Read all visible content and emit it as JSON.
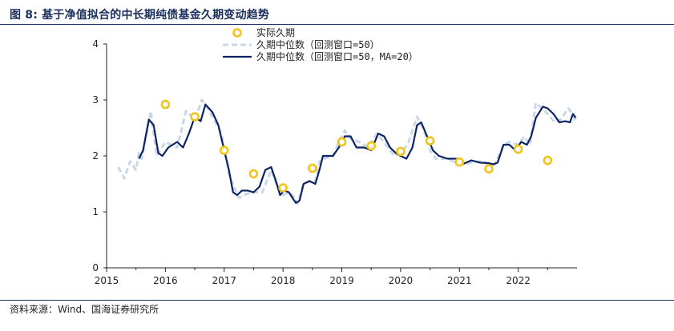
{
  "title": "图 8: 基于净值拟合的中长期纯债基金久期变动趋势",
  "source": "资料来源：Wind、国海证券研究所",
  "colors": {
    "actual": "#f2c318",
    "median": "#c9d6ea",
    "ma": "#0d2464",
    "axis": "#222222"
  },
  "chart_data": {
    "type": "line",
    "xlabel": "",
    "ylabel": "",
    "xlim": [
      2015,
      2023
    ],
    "ylim": [
      0,
      4
    ],
    "x_ticks": [
      "2015",
      "2016",
      "2017",
      "2018",
      "2019",
      "2020",
      "2021",
      "2022"
    ],
    "y_ticks": [
      "0",
      "1",
      "2",
      "3",
      "4"
    ],
    "grid": false,
    "legend_position": "top-center",
    "series": [
      {
        "name": "实际久期",
        "style": "scatter",
        "x": [
          2016.0,
          2016.5,
          2017.0,
          2017.5,
          2018.0,
          2018.5,
          2019.0,
          2019.5,
          2020.0,
          2020.5,
          2021.0,
          2021.5,
          2022.0,
          2022.5
        ],
        "y": [
          2.92,
          2.7,
          2.1,
          1.68,
          1.43,
          1.78,
          2.25,
          2.18,
          2.08,
          2.27,
          1.89,
          1.77,
          2.12,
          1.92
        ]
      },
      {
        "name": "久期中位数（回测窗口=50）",
        "style": "dashed",
        "x": [
          2015.2,
          2015.3,
          2015.4,
          2015.5,
          2015.55,
          2015.6,
          2015.75,
          2015.85,
          2016.0,
          2016.2,
          2016.35,
          2016.5,
          2016.62,
          2016.75,
          2016.95,
          2017.1,
          2017.25,
          2017.45,
          2017.65,
          2017.8,
          2017.92,
          2018.0,
          2018.1,
          2018.2,
          2018.25,
          2018.35,
          2018.45,
          2018.55,
          2018.62,
          2018.7,
          2018.85,
          2018.95,
          2019.05,
          2019.15,
          2019.3,
          2019.45,
          2019.6,
          2019.75,
          2019.9,
          2020.0,
          2020.12,
          2020.28,
          2020.4,
          2020.5,
          2020.6,
          2020.75,
          2020.9,
          2021.1,
          2021.25,
          2021.4,
          2021.5,
          2021.6,
          2021.75,
          2021.85,
          2022.0,
          2022.1,
          2022.2,
          2022.3,
          2022.4,
          2022.5,
          2022.62,
          2022.72,
          2022.85,
          2022.93,
          2022.98
        ],
        "y": [
          1.8,
          1.6,
          1.9,
          1.75,
          2.05,
          1.95,
          2.8,
          2.0,
          2.25,
          2.15,
          2.8,
          2.65,
          3.0,
          2.8,
          2.4,
          1.6,
          1.25,
          1.35,
          1.35,
          1.75,
          1.4,
          1.3,
          1.35,
          1.25,
          1.15,
          1.5,
          1.55,
          1.55,
          1.9,
          1.95,
          2.0,
          2.25,
          2.45,
          2.3,
          2.25,
          2.15,
          2.4,
          2.2,
          2.0,
          2.05,
          2.2,
          2.7,
          2.45,
          2.1,
          1.95,
          1.95,
          1.9,
          1.85,
          1.9,
          1.9,
          1.85,
          1.85,
          2.2,
          2.25,
          2.2,
          2.35,
          2.2,
          2.95,
          2.85,
          2.75,
          2.6,
          2.65,
          2.85,
          2.75,
          2.6
        ]
      },
      {
        "name": "久期中位数（回测窗口=50，MA=20）",
        "style": "solid",
        "x": [
          2015.55,
          2015.62,
          2015.72,
          2015.8,
          2015.88,
          2015.95,
          2016.05,
          2016.2,
          2016.3,
          2016.4,
          2016.5,
          2016.6,
          2016.68,
          2016.8,
          2016.9,
          2017.0,
          2017.08,
          2017.15,
          2017.22,
          2017.3,
          2017.4,
          2017.5,
          2017.6,
          2017.7,
          2017.8,
          2017.88,
          2017.95,
          2018.02,
          2018.1,
          2018.18,
          2018.22,
          2018.28,
          2018.35,
          2018.45,
          2018.55,
          2018.62,
          2018.68,
          2018.75,
          2018.85,
          2018.95,
          2019.05,
          2019.15,
          2019.25,
          2019.38,
          2019.5,
          2019.62,
          2019.72,
          2019.82,
          2019.92,
          2020.0,
          2020.1,
          2020.2,
          2020.28,
          2020.35,
          2020.45,
          2020.55,
          2020.65,
          2020.8,
          2020.95,
          2021.05,
          2021.2,
          2021.35,
          2021.5,
          2021.58,
          2021.65,
          2021.75,
          2021.85,
          2021.95,
          2022.05,
          2022.15,
          2022.22,
          2022.3,
          2022.42,
          2022.5,
          2022.6,
          2022.7,
          2022.8,
          2022.88,
          2022.93,
          2022.98
        ],
        "y": [
          1.95,
          2.1,
          2.65,
          2.55,
          2.05,
          2.0,
          2.15,
          2.25,
          2.15,
          2.4,
          2.7,
          2.62,
          2.92,
          2.78,
          2.55,
          2.1,
          1.75,
          1.35,
          1.3,
          1.38,
          1.38,
          1.35,
          1.45,
          1.75,
          1.8,
          1.55,
          1.3,
          1.38,
          1.35,
          1.22,
          1.16,
          1.2,
          1.5,
          1.55,
          1.5,
          1.75,
          2.0,
          2.0,
          2.0,
          2.15,
          2.35,
          2.35,
          2.15,
          2.15,
          2.1,
          2.4,
          2.35,
          2.15,
          2.05,
          2.0,
          1.95,
          2.15,
          2.55,
          2.6,
          2.35,
          2.1,
          2.0,
          1.95,
          1.95,
          1.85,
          1.92,
          1.88,
          1.87,
          1.85,
          1.88,
          2.2,
          2.2,
          2.1,
          2.25,
          2.2,
          2.35,
          2.68,
          2.88,
          2.85,
          2.75,
          2.6,
          2.62,
          2.6,
          2.75,
          2.68
        ]
      }
    ]
  }
}
